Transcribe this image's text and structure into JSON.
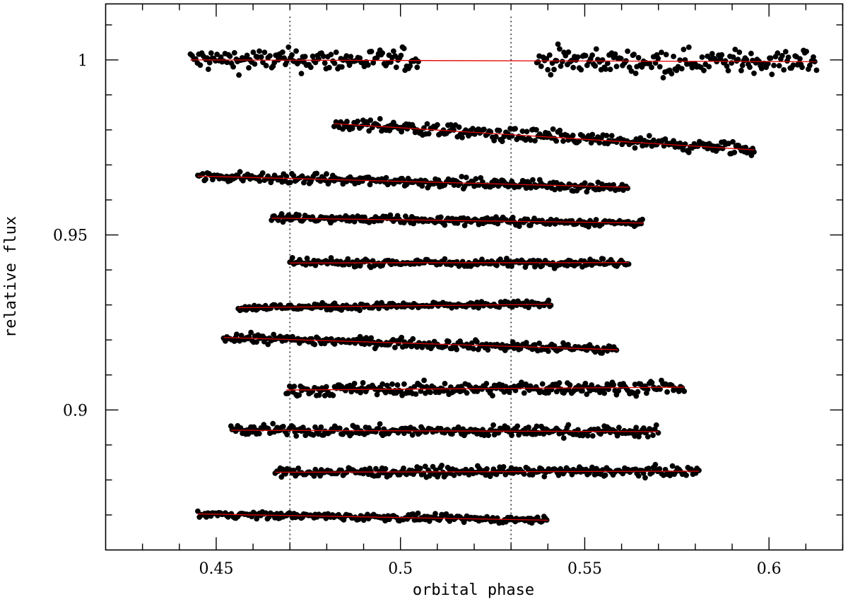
{
  "chart_data": {
    "type": "scatter",
    "title": "",
    "xlabel": "orbital phase",
    "ylabel": "relative flux",
    "xlim": [
      0.42,
      0.62
    ],
    "ylim": [
      0.86,
      1.016
    ],
    "x_ticks": [
      0.45,
      0.5,
      0.55,
      0.6
    ],
    "x_tick_labels": [
      "0.45",
      "0.5",
      "0.55",
      "0.6"
    ],
    "y_ticks": [
      0.9,
      0.95,
      1.0
    ],
    "y_tick_labels": [
      "0.9",
      "0.95",
      "1"
    ],
    "reference_lines_x": [
      0.47,
      0.53
    ],
    "grid": false,
    "marker_color": "#000000",
    "fit_color": "#e00000",
    "series": [
      {
        "x_start": 0.443,
        "x_end": 0.505,
        "x_start2": 0.537,
        "x_end2": 0.613,
        "gap": [
          0.505,
          0.537
        ],
        "flux_start": 1.0,
        "flux_end": 0.9995,
        "scatter": 0.0027
      },
      {
        "x_start": 0.482,
        "x_end": 0.596,
        "flux_start": 0.9818,
        "flux_end": 0.9743,
        "scatter": 0.0016
      },
      {
        "x_start": 0.445,
        "x_end": 0.562,
        "flux_start": 0.9668,
        "flux_end": 0.9636,
        "scatter": 0.0012
      },
      {
        "x_start": 0.465,
        "x_end": 0.566,
        "flux_start": 0.9548,
        "flux_end": 0.9534,
        "scatter": 0.0009
      },
      {
        "x_start": 0.47,
        "x_end": 0.562,
        "flux_start": 0.942,
        "flux_end": 0.9421,
        "scatter": 0.0009
      },
      {
        "x_start": 0.456,
        "x_end": 0.541,
        "flux_start": 0.9292,
        "flux_end": 0.9302,
        "scatter": 0.0008
      },
      {
        "x_start": 0.452,
        "x_end": 0.559,
        "flux_start": 0.9207,
        "flux_end": 0.9172,
        "scatter": 0.0011
      },
      {
        "x_start": 0.469,
        "x_end": 0.577,
        "flux_start": 0.9057,
        "flux_end": 0.9065,
        "scatter": 0.0015
      },
      {
        "x_start": 0.454,
        "x_end": 0.57,
        "flux_start": 0.8942,
        "flux_end": 0.8938,
        "scatter": 0.0013
      },
      {
        "x_start": 0.466,
        "x_end": 0.581,
        "flux_start": 0.8822,
        "flux_end": 0.8825,
        "scatter": 0.0011
      },
      {
        "x_start": 0.445,
        "x_end": 0.54,
        "flux_start": 0.8703,
        "flux_end": 0.8685,
        "scatter": 0.0008
      }
    ]
  }
}
